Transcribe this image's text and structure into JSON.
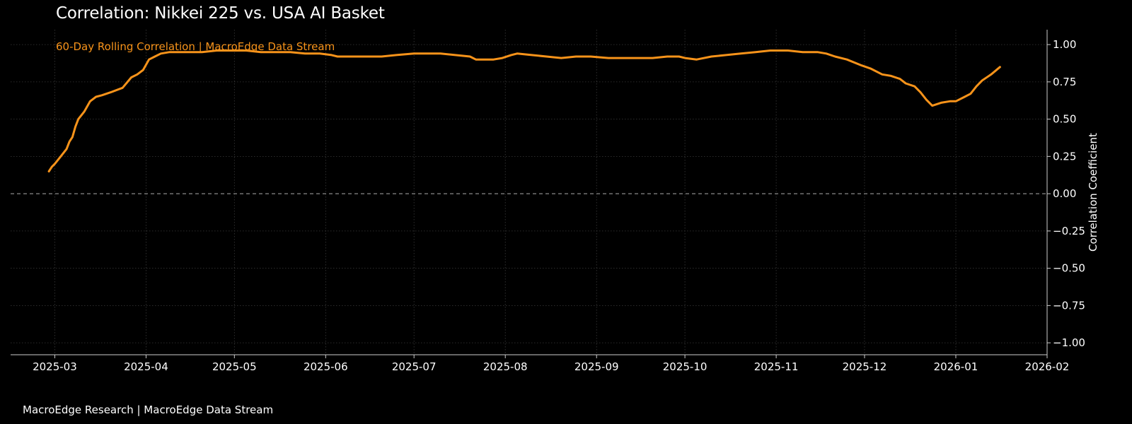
{
  "header": {
    "title": "Correlation: Nikkei 225 vs. USA AI Basket"
  },
  "footer": {
    "text": "MacroEdge Research | MacroEdge Data Stream"
  },
  "colors": {
    "background": "#000000",
    "line": "#f7931a",
    "text": "#ffffff",
    "grid": "#3a3a3a",
    "zero_line": "#8a8a8a",
    "axis": "#cccccc"
  },
  "chart_data": {
    "type": "line",
    "title": "Correlation: Nikkei 225 vs. USA AI Basket",
    "subtitle": "60-Day Rolling Correlation | MacroEdge Data Stream",
    "xlabel": "",
    "ylabel": "Correlation Coefficient",
    "y_axis_side": "right",
    "xlim": [
      "2025-02-14",
      "2026-02-01"
    ],
    "ylim": [
      -1.08,
      1.1
    ],
    "x_ticks": [
      "2025-03",
      "2025-04",
      "2025-05",
      "2025-06",
      "2025-07",
      "2025-08",
      "2025-09",
      "2025-10",
      "2025-11",
      "2025-12",
      "2026-01",
      "2026-02"
    ],
    "y_ticks": [
      1.0,
      0.75,
      0.5,
      0.25,
      0.0,
      -0.25,
      -0.5,
      -0.75,
      -1.0
    ],
    "y_tick_labels": [
      "1.00",
      "0.75",
      "0.50",
      "0.25",
      "0.00",
      "−0.25",
      "−0.50",
      "−0.75",
      "−1.00"
    ],
    "grid": true,
    "reference_line": {
      "y": 0,
      "style": "dashed"
    },
    "series": [
      {
        "x": [
          "2025-02-27",
          "2025-02-28",
          "2025-03-01",
          "2025-03-03",
          "2025-03-05",
          "2025-03-06",
          "2025-03-07",
          "2025-03-08",
          "2025-03-09",
          "2025-03-11",
          "2025-03-13",
          "2025-03-15",
          "2025-03-17",
          "2025-03-20",
          "2025-03-24",
          "2025-03-27",
          "2025-03-29",
          "2025-03-31",
          "2025-04-02",
          "2025-04-04",
          "2025-04-06",
          "2025-04-09",
          "2025-04-12",
          "2025-04-15",
          "2025-04-20",
          "2025-04-25",
          "2025-05-01",
          "2025-05-05",
          "2025-05-10",
          "2025-05-15",
          "2025-05-20",
          "2025-05-25",
          "2025-05-30",
          "2025-06-03",
          "2025-06-05",
          "2025-06-10",
          "2025-06-15",
          "2025-06-20",
          "2025-06-25",
          "2025-07-01",
          "2025-07-10",
          "2025-07-15",
          "2025-07-20",
          "2025-07-22",
          "2025-07-25",
          "2025-07-28",
          "2025-07-31",
          "2025-08-03",
          "2025-08-05",
          "2025-08-10",
          "2025-08-15",
          "2025-08-20",
          "2025-08-25",
          "2025-08-30",
          "2025-09-05",
          "2025-09-10",
          "2025-09-15",
          "2025-09-20",
          "2025-09-25",
          "2025-09-29",
          "2025-10-01",
          "2025-10-05",
          "2025-10-10",
          "2025-10-15",
          "2025-10-20",
          "2025-10-25",
          "2025-10-30",
          "2025-11-05",
          "2025-11-10",
          "2025-11-15",
          "2025-11-18",
          "2025-11-21",
          "2025-11-25",
          "2025-11-30",
          "2025-12-03",
          "2025-12-07",
          "2025-12-10",
          "2025-12-13",
          "2025-12-15",
          "2025-12-18",
          "2025-12-20",
          "2025-12-22",
          "2025-12-24",
          "2025-12-27",
          "2025-12-30",
          "2026-01-01",
          "2026-01-04",
          "2026-01-06",
          "2026-01-08",
          "2026-01-10",
          "2026-01-13",
          "2026-01-16"
        ],
        "y": [
          0.15,
          0.18,
          0.2,
          0.25,
          0.3,
          0.35,
          0.38,
          0.45,
          0.5,
          0.55,
          0.62,
          0.65,
          0.66,
          0.68,
          0.71,
          0.78,
          0.8,
          0.83,
          0.9,
          0.92,
          0.94,
          0.95,
          0.95,
          0.95,
          0.95,
          0.96,
          0.96,
          0.96,
          0.95,
          0.95,
          0.95,
          0.94,
          0.94,
          0.93,
          0.92,
          0.92,
          0.92,
          0.92,
          0.93,
          0.94,
          0.94,
          0.93,
          0.92,
          0.9,
          0.9,
          0.9,
          0.91,
          0.93,
          0.94,
          0.93,
          0.92,
          0.91,
          0.92,
          0.92,
          0.91,
          0.91,
          0.91,
          0.91,
          0.92,
          0.92,
          0.91,
          0.9,
          0.92,
          0.93,
          0.94,
          0.95,
          0.96,
          0.96,
          0.95,
          0.95,
          0.94,
          0.92,
          0.9,
          0.86,
          0.84,
          0.8,
          0.79,
          0.77,
          0.74,
          0.72,
          0.68,
          0.63,
          0.59,
          0.61,
          0.62,
          0.62,
          0.65,
          0.67,
          0.72,
          0.76,
          0.8,
          0.85
        ]
      }
    ]
  }
}
